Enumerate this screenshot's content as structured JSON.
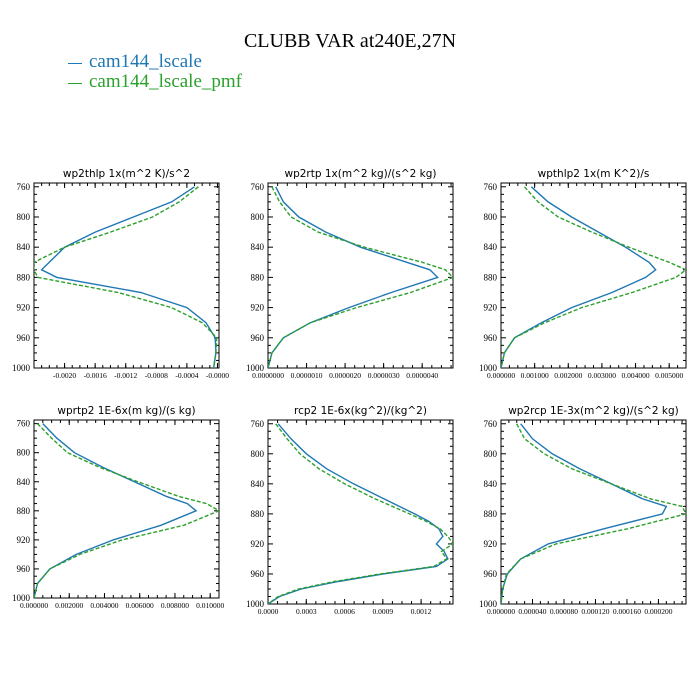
{
  "title": "CLUBB VAR at240E,27N",
  "legend": [
    {
      "label": "cam144_lscale",
      "color": "#1f77b4"
    },
    {
      "label": "cam144_lscale_pmf",
      "color": "#2ca02c"
    }
  ],
  "chart_data": [
    {
      "type": "line",
      "title": "wp2thlp  1x(m^2 K)/s^2",
      "xlim": [
        -0.0024,
        2e-05
      ],
      "ylim": [
        1000,
        755
      ],
      "yticks": [
        760,
        800,
        840,
        880,
        920,
        960,
        1000
      ],
      "xticks": [
        -0.002,
        -0.0016,
        -0.0012,
        -0.0008,
        -0.0004,
        0.0
      ],
      "xtick_labels": [
        "-0.0020",
        "-0.0016",
        "-0.0012",
        "-0.0008",
        "-0.0004",
        "-0.0000"
      ],
      "y": [
        760,
        780,
        800,
        820,
        840,
        860,
        870,
        880,
        900,
        920,
        940,
        960,
        980,
        1000
      ],
      "series": [
        {
          "name": "cam144_lscale",
          "values": [
            -0.0003,
            -0.0006,
            -0.0011,
            -0.0016,
            -0.002,
            -0.0022,
            -0.0023,
            -0.0021,
            -0.001,
            -0.0004,
            -0.00015,
            -3e-05,
            -2e-05,
            -5e-05
          ]
        },
        {
          "name": "cam144_lscale_pmf",
          "values": [
            -0.00025,
            -0.0005,
            -0.00085,
            -0.0014,
            -0.002,
            -0.0024,
            -0.0024,
            -0.00235,
            -0.0013,
            -0.0006,
            -0.0002,
            -1e-05,
            -2e-05,
            -5e-05
          ]
        }
      ]
    },
    {
      "type": "line",
      "title": "wp2rtp  1x(m^2 kg)/(s^2 kg)",
      "xlim": [
        0,
        4.8e-06
      ],
      "ylim": [
        1000,
        755
      ],
      "yticks": [
        760,
        800,
        840,
        880,
        920,
        960,
        1000
      ],
      "xticks": [
        0,
        1e-06,
        2e-06,
        3e-06,
        4e-06
      ],
      "xtick_labels": [
        "0.0000000",
        "0.0000010",
        "0.0000020",
        "0.0000030",
        "0.0000040"
      ],
      "y": [
        760,
        780,
        800,
        820,
        840,
        860,
        870,
        880,
        900,
        920,
        940,
        960,
        980,
        1000
      ],
      "series": [
        {
          "name": "cam144_lscale",
          "values": [
            2e-07,
            4e-07,
            8e-07,
            1.5e-06,
            2.4e-06,
            3.6e-06,
            4.2e-06,
            4.4e-06,
            3.2e-06,
            2.1e-06,
            1.1e-06,
            4e-07,
            1e-07,
            0.0
          ]
        },
        {
          "name": "cam144_lscale_pmf",
          "values": [
            1e-07,
            3e-07,
            6e-07,
            1.3e-06,
            2.5e-06,
            4e-06,
            4.6e-06,
            4.8e-06,
            3.7e-06,
            2.3e-06,
            1.1e-06,
            4e-07,
            1e-07,
            0.0
          ]
        }
      ]
    },
    {
      "type": "line",
      "title": "wpthlp2  1x(m K^2)/s",
      "xlim": [
        0,
        0.0055
      ],
      "ylim": [
        1000,
        755
      ],
      "yticks": [
        760,
        800,
        840,
        880,
        920,
        960,
        1000
      ],
      "xticks": [
        0,
        0.001,
        0.002,
        0.003,
        0.004,
        0.005
      ],
      "xtick_labels": [
        "0.000000",
        "0.001000",
        "0.002000",
        "0.003000",
        "0.004000",
        "0.005000"
      ],
      "y": [
        760,
        780,
        800,
        820,
        840,
        860,
        870,
        880,
        900,
        920,
        940,
        960,
        980,
        1000
      ],
      "series": [
        {
          "name": "cam144_lscale",
          "values": [
            0.0009,
            0.0014,
            0.0021,
            0.0029,
            0.0037,
            0.0044,
            0.0046,
            0.0043,
            0.0033,
            0.0021,
            0.0012,
            0.0004,
            0.0001,
            0.0
          ]
        },
        {
          "name": "cam144_lscale_pmf",
          "values": [
            0.0007,
            0.0011,
            0.0017,
            0.0027,
            0.0038,
            0.005,
            0.0055,
            0.0052,
            0.0039,
            0.0024,
            0.0013,
            0.0004,
            0.0001,
            0.0
          ]
        }
      ]
    },
    {
      "type": "line",
      "title": "wprtp2  1E-6x(m kg)/(s kg)",
      "xlim": [
        0,
        0.0105
      ],
      "ylim": [
        1000,
        755
      ],
      "yticks": [
        760,
        800,
        840,
        880,
        920,
        960,
        1000
      ],
      "xticks": [
        0,
        0.002,
        0.004,
        0.006,
        0.008,
        0.01
      ],
      "xtick_labels": [
        "0.000000",
        "0.002000",
        "0.004000",
        "0.006000",
        "0.008000",
        "0.010000"
      ],
      "y": [
        760,
        780,
        800,
        820,
        840,
        860,
        870,
        880,
        900,
        920,
        940,
        960,
        980,
        1000
      ],
      "series": [
        {
          "name": "cam144_lscale",
          "values": [
            0.0005,
            0.0013,
            0.0023,
            0.0039,
            0.0057,
            0.0075,
            0.0087,
            0.0092,
            0.0072,
            0.0045,
            0.0024,
            0.0009,
            0.0002,
            0.0
          ]
        },
        {
          "name": "cam144_lscale_pmf",
          "values": [
            0.0002,
            0.001,
            0.0019,
            0.0037,
            0.0059,
            0.0082,
            0.0098,
            0.0105,
            0.0085,
            0.005,
            0.0026,
            0.0009,
            0.0002,
            0.0
          ]
        }
      ]
    },
    {
      "type": "line",
      "title": "rcp2  1E-6x(kg^2)/(kg^2)",
      "xlim": [
        0,
        0.00145
      ],
      "ylim": [
        1000,
        755
      ],
      "yticks": [
        760,
        800,
        840,
        880,
        920,
        960,
        1000
      ],
      "xticks": [
        0,
        0.0003,
        0.0006,
        0.0009,
        0.0012
      ],
      "xtick_labels": [
        "0.0000",
        "0.0003",
        "0.0006",
        "0.0009",
        "0.0012"
      ],
      "y": [
        760,
        780,
        800,
        820,
        840,
        860,
        880,
        890,
        900,
        910,
        920,
        930,
        940,
        950,
        960,
        970,
        980,
        990,
        1000
      ],
      "series": [
        {
          "name": "cam144_lscale",
          "values": [
            8e-05,
            0.00018,
            0.0003,
            0.00046,
            0.00067,
            0.00091,
            0.00115,
            0.00126,
            0.00134,
            0.00137,
            0.00132,
            0.00138,
            0.00141,
            0.00132,
            0.0009,
            0.00055,
            0.00026,
            9e-05,
            0.0
          ]
        },
        {
          "name": "cam144_lscale_pmf",
          "values": [
            6e-05,
            0.00015,
            0.00025,
            0.0004,
            0.0006,
            0.00084,
            0.00111,
            0.00124,
            0.00135,
            0.00141,
            0.00145,
            0.00136,
            0.0014,
            0.0013,
            0.00088,
            0.00052,
            0.00024,
            8e-05,
            0.0
          ]
        }
      ]
    },
    {
      "type": "line",
      "title": "wp2rcp  1E-3x(m^2 kg)/(s^2 kg)",
      "xlim": [
        0,
        0.000235
      ],
      "ylim": [
        1000,
        755
      ],
      "yticks": [
        760,
        800,
        840,
        880,
        920,
        960,
        1000
      ],
      "xticks": [
        0,
        4e-05,
        8e-05,
        0.00012,
        0.00016,
        0.0002
      ],
      "xtick_labels": [
        "0.000000",
        "0.000040",
        "0.000080",
        "0.000120",
        "0.000160",
        "0.000200"
      ],
      "y": [
        760,
        780,
        800,
        820,
        840,
        860,
        870,
        880,
        900,
        920,
        940,
        960,
        980,
        1000
      ],
      "series": [
        {
          "name": "cam144_lscale",
          "values": [
            2.5e-05,
            4e-05,
            6.5e-05,
            0.0001,
            0.00014,
            0.00018,
            0.00021,
            0.000205,
            0.00013,
            6e-05,
            2.5e-05,
            8e-06,
            2e-06,
            0.0
          ]
        },
        {
          "name": "cam144_lscale_pmf",
          "values": [
            2e-05,
            3e-05,
            5.5e-05,
            9e-05,
            0.00014,
            0.00019,
            0.00023,
            0.000235,
            0.00016,
            7e-05,
            2.5e-05,
            7e-06,
            2e-06,
            0.0
          ]
        }
      ]
    }
  ]
}
